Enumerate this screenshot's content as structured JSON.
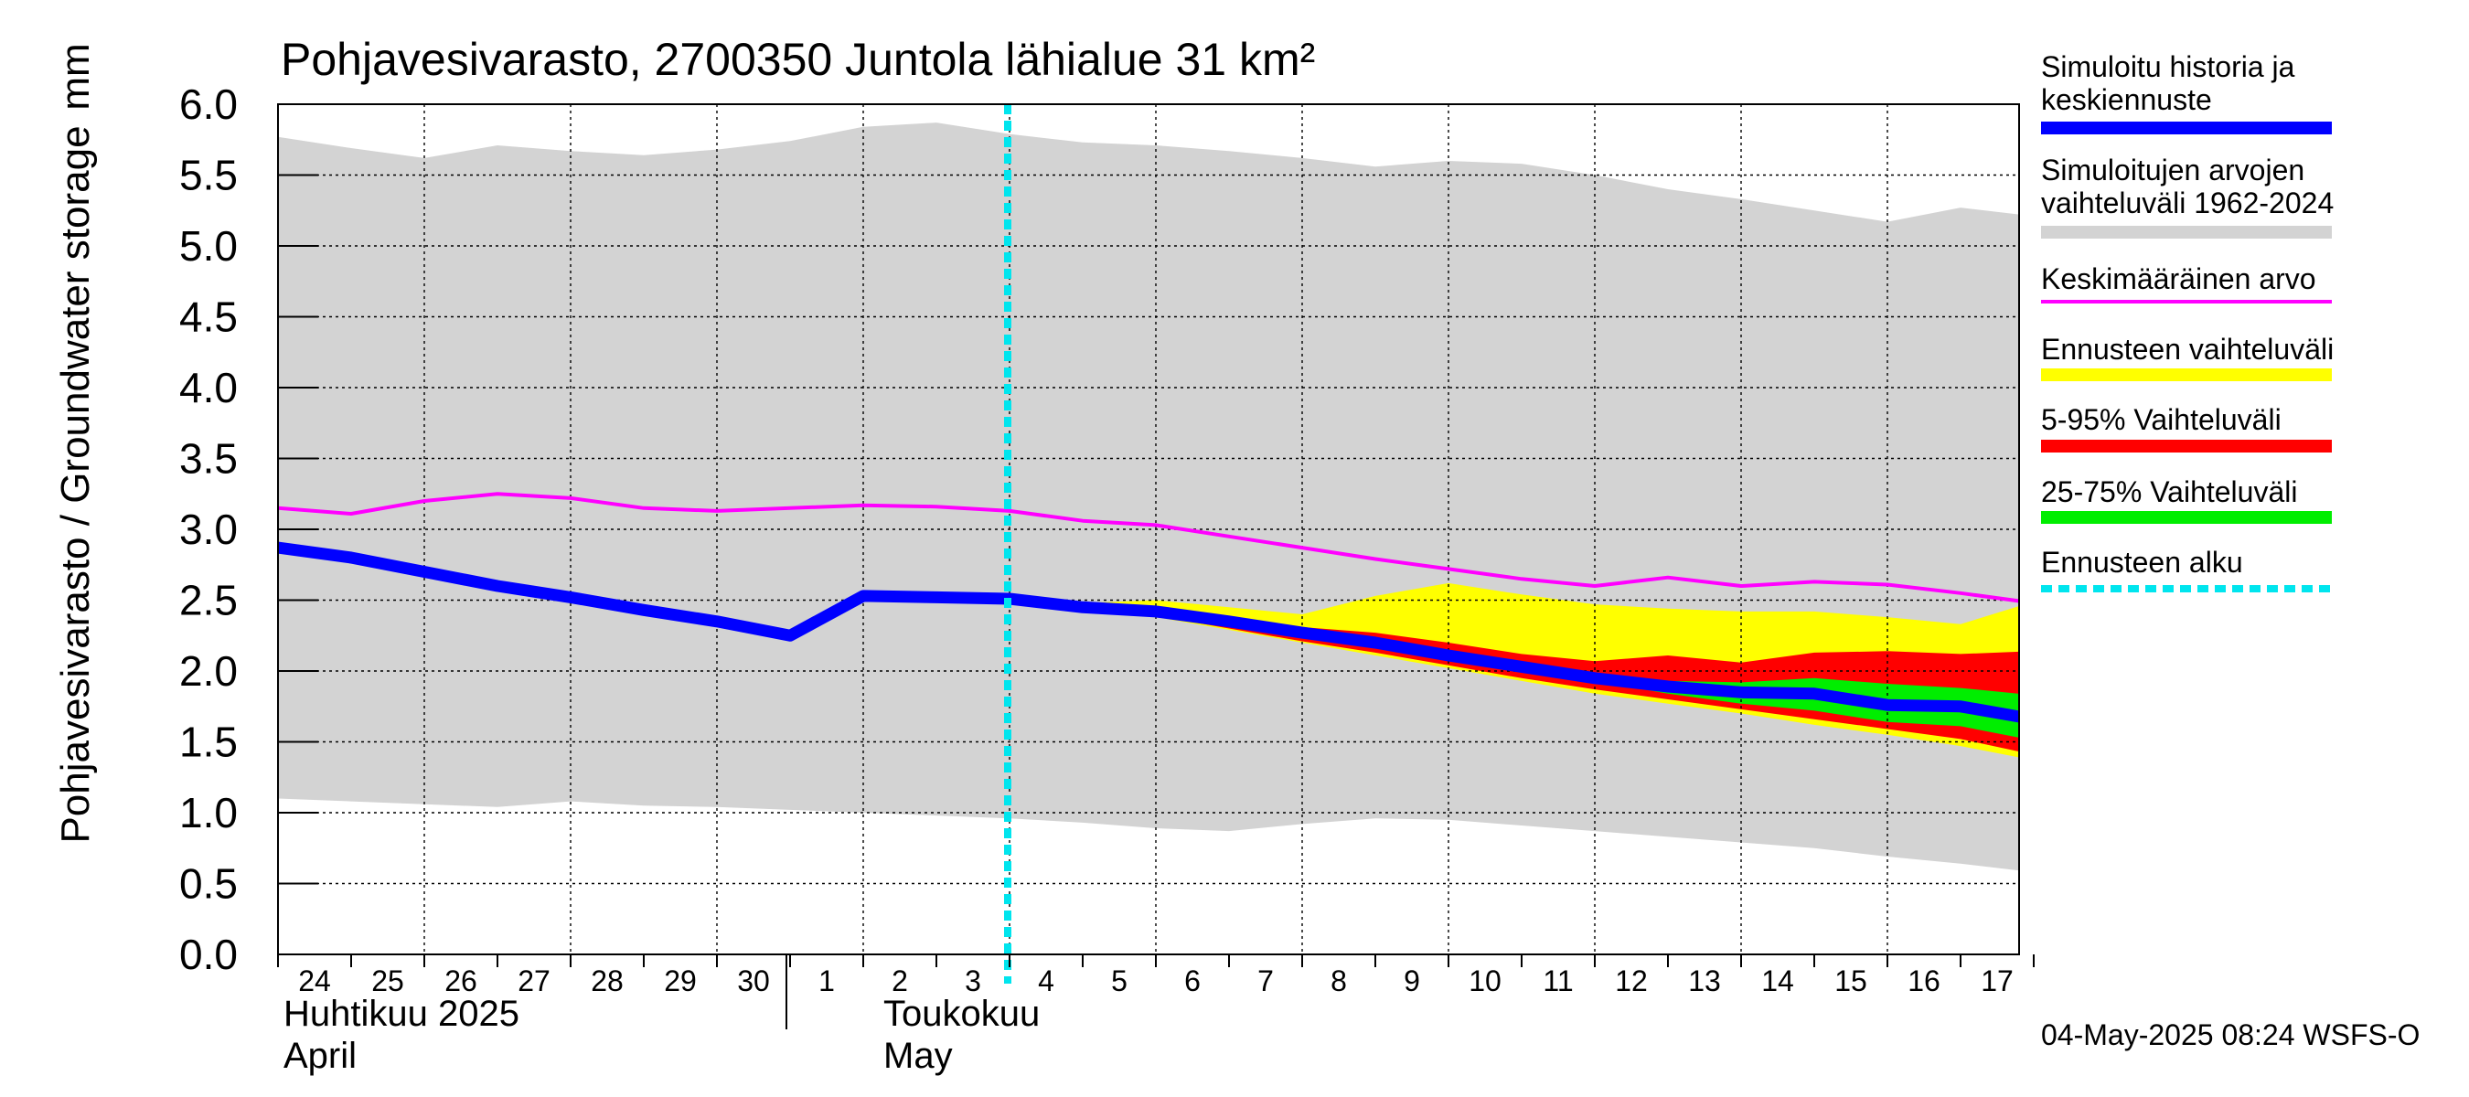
{
  "chart_data": {
    "type": "area",
    "title": "Pohjavesivarasto, 2700350 Juntola lähialue 31 km²",
    "ylabel": "Pohjavesivarasto / Groundwater storage",
    "yunit": "mm",
    "ylim": [
      0,
      6
    ],
    "yticks": [
      "0.0",
      "0.5",
      "1.0",
      "1.5",
      "2.0",
      "2.5",
      "3.0",
      "3.5",
      "4.0",
      "4.5",
      "5.0",
      "5.5",
      "6.0"
    ],
    "grid": true,
    "days": [
      "24",
      "25",
      "26",
      "27",
      "28",
      "29",
      "30",
      "1",
      "2",
      "3",
      "4",
      "5",
      "6",
      "7",
      "8",
      "9",
      "10",
      "11",
      "12",
      "13",
      "14",
      "15",
      "16",
      "17"
    ],
    "months": [
      {
        "line1": "Huhtikuu  2025",
        "line2": "April",
        "start_day": "24"
      },
      {
        "line1": "Toukokuu",
        "line2": "May",
        "start_day": "1"
      }
    ],
    "x_start": "2025-04-24",
    "x_end": "2025-05-18",
    "forecast_start": "2025-05-04",
    "footer": "04-May-2025 08:24 WSFS-O",
    "colors": {
      "history": "#0000ff",
      "range": "#d3d3d3",
      "mean": "#ff00ff",
      "forecast_range": "#ffff00",
      "p5_95": "#ff0000",
      "p25_75": "#00ee00",
      "forecast_start": "#00e5ee"
    },
    "legend": [
      {
        "label": "Simuloitu historia ja keskiennuste",
        "color": "#0000ff",
        "style": "solid"
      },
      {
        "label": "Simuloitujen arvojen vaihteluväli 1962-2024",
        "color": "#d3d3d3",
        "style": "solid"
      },
      {
        "label": "Keskimääräinen arvo",
        "color": "#ff00ff",
        "style": "thin"
      },
      {
        "label": "Ennusteen vaihteluväli",
        "color": "#ffff00",
        "style": "solid"
      },
      {
        "label": "5-95% Vaihteluväli",
        "color": "#ff0000",
        "style": "solid"
      },
      {
        "label": "25-75% Vaihteluväli",
        "color": "#00ee00",
        "style": "solid"
      },
      {
        "label": "Ennusteen alku",
        "color": "#00e5ee",
        "style": "dotted"
      }
    ],
    "series": [
      {
        "name": "Simuloitujen arvojen vaihteluväli 1962-2024",
        "x": [
          "2025-04-24",
          "2025-04-25",
          "2025-04-26",
          "2025-04-27",
          "2025-04-28",
          "2025-04-29",
          "2025-04-30",
          "2025-05-01",
          "2025-05-02",
          "2025-05-03",
          "2025-05-04",
          "2025-05-05",
          "2025-05-06",
          "2025-05-07",
          "2025-05-08",
          "2025-05-09",
          "2025-05-10",
          "2025-05-11",
          "2025-05-12",
          "2025-05-13",
          "2025-05-14",
          "2025-05-15",
          "2025-05-16",
          "2025-05-17",
          "2025-05-18"
        ],
        "upper": [
          5.77,
          5.69,
          5.62,
          5.71,
          5.67,
          5.64,
          5.68,
          5.74,
          5.84,
          5.87,
          5.79,
          5.73,
          5.71,
          5.67,
          5.62,
          5.56,
          5.6,
          5.58,
          5.5,
          5.4,
          5.33,
          5.25,
          5.17,
          5.27,
          5.21
        ],
        "lower": [
          1.1,
          1.08,
          1.06,
          1.04,
          1.08,
          1.05,
          1.04,
          1.02,
          1.0,
          0.98,
          0.96,
          0.93,
          0.89,
          0.87,
          0.92,
          0.96,
          0.95,
          0.91,
          0.87,
          0.83,
          0.79,
          0.75,
          0.69,
          0.64,
          0.58
        ]
      },
      {
        "name": "Keskimääräinen arvo",
        "x": [
          "2025-04-24",
          "2025-04-25",
          "2025-04-26",
          "2025-04-27",
          "2025-04-28",
          "2025-04-29",
          "2025-04-30",
          "2025-05-01",
          "2025-05-02",
          "2025-05-03",
          "2025-05-04",
          "2025-05-05",
          "2025-05-06",
          "2025-05-07",
          "2025-05-08",
          "2025-05-09",
          "2025-05-10",
          "2025-05-11",
          "2025-05-12",
          "2025-05-13",
          "2025-05-14",
          "2025-05-15",
          "2025-05-16",
          "2025-05-17",
          "2025-05-18"
        ],
        "values": [
          3.15,
          3.11,
          3.2,
          3.25,
          3.22,
          3.15,
          3.13,
          3.15,
          3.17,
          3.16,
          3.13,
          3.06,
          3.03,
          2.95,
          2.87,
          2.79,
          2.72,
          2.65,
          2.6,
          2.66,
          2.6,
          2.63,
          2.61,
          2.55,
          2.48
        ]
      },
      {
        "name": "Simuloitu historia ja keskiennuste",
        "x": [
          "2025-04-24",
          "2025-04-25",
          "2025-04-26",
          "2025-04-27",
          "2025-04-28",
          "2025-04-29",
          "2025-04-30",
          "2025-05-01",
          "2025-05-02",
          "2025-05-03",
          "2025-05-04",
          "2025-05-05",
          "2025-05-06",
          "2025-05-07",
          "2025-05-08",
          "2025-05-09",
          "2025-05-10",
          "2025-05-11",
          "2025-05-12",
          "2025-05-13",
          "2025-05-14",
          "2025-05-15",
          "2025-05-16",
          "2025-05-17",
          "2025-05-18"
        ],
        "values": [
          2.87,
          2.8,
          2.7,
          2.6,
          2.52,
          2.43,
          2.35,
          2.25,
          2.53,
          2.52,
          2.51,
          2.45,
          2.42,
          2.35,
          2.27,
          2.2,
          2.11,
          2.03,
          1.95,
          1.89,
          1.85,
          1.84,
          1.76,
          1.75,
          1.66
        ]
      },
      {
        "name": "Ennusteen vaihteluväli",
        "x": [
          "2025-05-05",
          "2025-05-06",
          "2025-05-07",
          "2025-05-08",
          "2025-05-09",
          "2025-05-10",
          "2025-05-11",
          "2025-05-12",
          "2025-05-13",
          "2025-05-14",
          "2025-05-15",
          "2025-05-16",
          "2025-05-17",
          "2025-05-18"
        ],
        "upper": [
          2.48,
          2.5,
          2.45,
          2.4,
          2.53,
          2.62,
          2.54,
          2.47,
          2.44,
          2.42,
          2.42,
          2.38,
          2.33,
          2.49
        ],
        "lower": [
          2.44,
          2.38,
          2.29,
          2.2,
          2.11,
          2.02,
          1.93,
          1.84,
          1.77,
          1.7,
          1.62,
          1.55,
          1.47,
          1.37
        ]
      },
      {
        "name": "5-95% Vaihteluväli",
        "x": [
          "2025-05-05",
          "2025-05-06",
          "2025-05-07",
          "2025-05-08",
          "2025-05-09",
          "2025-05-10",
          "2025-05-11",
          "2025-05-12",
          "2025-05-13",
          "2025-05-14",
          "2025-05-15",
          "2025-05-16",
          "2025-05-17",
          "2025-05-18"
        ],
        "upper": [
          2.47,
          2.44,
          2.37,
          2.31,
          2.27,
          2.2,
          2.12,
          2.07,
          2.11,
          2.06,
          2.13,
          2.14,
          2.12,
          2.14
        ],
        "lower": [
          2.44,
          2.39,
          2.3,
          2.21,
          2.13,
          2.04,
          1.95,
          1.87,
          1.8,
          1.73,
          1.66,
          1.59,
          1.52,
          1.41
        ]
      },
      {
        "name": "25-75% Vaihteluväli",
        "x": [
          "2025-05-12",
          "2025-05-13",
          "2025-05-14",
          "2025-05-15",
          "2025-05-16",
          "2025-05-17",
          "2025-05-18"
        ],
        "upper": [
          1.96,
          1.93,
          1.92,
          1.95,
          1.91,
          1.88,
          1.83
        ],
        "lower": [
          1.93,
          1.84,
          1.77,
          1.72,
          1.64,
          1.61,
          1.51
        ]
      }
    ]
  }
}
